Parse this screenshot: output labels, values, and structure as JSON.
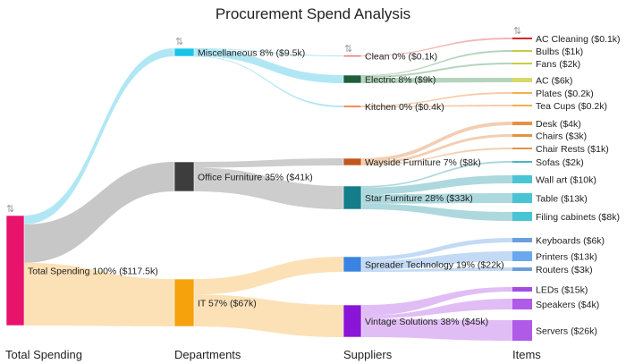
{
  "title": "Procurement Spend Analysis",
  "columns": [
    "Total Spending",
    "Departments",
    "Suppliers",
    "Items"
  ],
  "nodes": [
    {
      "id": "total",
      "col": 0,
      "label": "Total Spending 100% ($117.5k)",
      "value": 117.5,
      "color": "#e8136b",
      "sort_icon": true
    },
    {
      "id": "misc",
      "col": 1,
      "label": "Miscellaneous 8% ($9.5k)",
      "value": 9.5,
      "color": "#18c4e8",
      "sort_icon": true
    },
    {
      "id": "office",
      "col": 1,
      "label": "Office Furniture 35% ($41k)",
      "value": 41,
      "color": "#3d3d3d"
    },
    {
      "id": "it",
      "col": 1,
      "label": "IT 57% ($67k)",
      "value": 67,
      "color": "#f6a20c"
    },
    {
      "id": "clean",
      "col": 2,
      "label": "Clean 0% ($0.1k)",
      "value": 0.1,
      "color": "#d62728",
      "sort_icon": true
    },
    {
      "id": "electric",
      "col": 2,
      "label": "Electric 8% ($9k)",
      "value": 9,
      "color": "#1e5e3a"
    },
    {
      "id": "kitchen",
      "col": 2,
      "label": "Kitchen 0% ($0.4k)",
      "value": 0.4,
      "color": "#e8601c"
    },
    {
      "id": "wayside",
      "col": 2,
      "label": "Wayside Furniture 7% ($8k)",
      "value": 8,
      "color": "#c0571c"
    },
    {
      "id": "star",
      "col": 2,
      "label": "Star Furniture 28% ($33k)",
      "value": 33,
      "color": "#137e8a"
    },
    {
      "id": "spreader",
      "col": 2,
      "label": "Spreader Technology 19% ($22k)",
      "value": 22,
      "color": "#3b83e0"
    },
    {
      "id": "vintage",
      "col": 2,
      "label": "Vintage Solutions 38% ($45k)",
      "value": 45,
      "color": "#8a14d8"
    },
    {
      "id": "accleaning",
      "col": 3,
      "label": "AC Cleaning ($0.1k)",
      "value": 0.1,
      "color": "#d62728",
      "sort_icon": true
    },
    {
      "id": "bulbs",
      "col": 3,
      "label": "Bulbs ($1k)",
      "value": 1,
      "color": "#c8cc42"
    },
    {
      "id": "fans",
      "col": 3,
      "label": "Fans ($2k)",
      "value": 2,
      "color": "#c8cc42"
    },
    {
      "id": "ac",
      "col": 3,
      "label": "AC ($6k)",
      "value": 6,
      "color": "#d8d86a"
    },
    {
      "id": "plates",
      "col": 3,
      "label": "Plates ($0.2k)",
      "value": 0.2,
      "color": "#f2b24a"
    },
    {
      "id": "teacups",
      "col": 3,
      "label": "Tea Cups ($0.2k)",
      "value": 0.2,
      "color": "#f2b24a"
    },
    {
      "id": "desk",
      "col": 3,
      "label": "Desk ($4k)",
      "value": 4,
      "color": "#e39245"
    },
    {
      "id": "chairs",
      "col": 3,
      "label": "Chairs ($3k)",
      "value": 3,
      "color": "#e39245"
    },
    {
      "id": "chairrests",
      "col": 3,
      "label": "Chair Rests ($1k)",
      "value": 1,
      "color": "#e39245"
    },
    {
      "id": "sofas",
      "col": 3,
      "label": "Sofas ($2k)",
      "value": 2,
      "color": "#49b8c4"
    },
    {
      "id": "wallart",
      "col": 3,
      "label": "Wall art ($10k)",
      "value": 10,
      "color": "#49c4d4"
    },
    {
      "id": "table",
      "col": 3,
      "label": "Table ($13k)",
      "value": 13,
      "color": "#49c4d4"
    },
    {
      "id": "filing",
      "col": 3,
      "label": "Filing cabinets ($8k)",
      "value": 8,
      "color": "#49c4d4"
    },
    {
      "id": "keyboards",
      "col": 3,
      "label": "Keyboards ($6k)",
      "value": 6,
      "color": "#6a9fde"
    },
    {
      "id": "printers",
      "col": 3,
      "label": "Printers ($13k)",
      "value": 13,
      "color": "#6aa8ee"
    },
    {
      "id": "routers",
      "col": 3,
      "label": "Routers ($3k)",
      "value": 3,
      "color": "#6a9fde"
    },
    {
      "id": "leds",
      "col": 3,
      "label": "LEDs ($15k)",
      "value": 15,
      "color": "#a34ce0"
    },
    {
      "id": "speakers",
      "col": 3,
      "label": "Speakers  ($4k)",
      "value": 4,
      "color": "#b05ae8"
    },
    {
      "id": "servers",
      "col": 3,
      "label": "Servers ($26k)",
      "value": 26,
      "color": "#b05ae8"
    }
  ],
  "links": [
    {
      "source": "total",
      "target": "misc",
      "value": 9.5,
      "color": "#a3e3f3"
    },
    {
      "source": "total",
      "target": "office",
      "value": 41,
      "color": "#bdbdbd"
    },
    {
      "source": "total",
      "target": "it",
      "value": 67,
      "color": "#fbdcaa"
    },
    {
      "source": "misc",
      "target": "clean",
      "value": 0.1,
      "color": "#a3e3f3"
    },
    {
      "source": "misc",
      "target": "electric",
      "value": 9,
      "color": "#a3e3f3"
    },
    {
      "source": "misc",
      "target": "kitchen",
      "value": 0.4,
      "color": "#a3e3f3"
    },
    {
      "source": "office",
      "target": "wayside",
      "value": 8,
      "color": "#c4c4c4"
    },
    {
      "source": "office",
      "target": "star",
      "value": 33,
      "color": "#c4c4c4"
    },
    {
      "source": "it",
      "target": "spreader",
      "value": 22,
      "color": "#fbdcaa"
    },
    {
      "source": "it",
      "target": "vintage",
      "value": 45,
      "color": "#fbdcaa"
    },
    {
      "source": "clean",
      "target": "accleaning",
      "value": 0.1,
      "color": "#f2a8a8"
    },
    {
      "source": "electric",
      "target": "bulbs",
      "value": 1,
      "color": "#a7cdb0"
    },
    {
      "source": "electric",
      "target": "fans",
      "value": 2,
      "color": "#a7cdb0"
    },
    {
      "source": "electric",
      "target": "ac",
      "value": 6,
      "color": "#a7cdb0"
    },
    {
      "source": "kitchen",
      "target": "plates",
      "value": 0.2,
      "color": "#f6c29a"
    },
    {
      "source": "kitchen",
      "target": "teacups",
      "value": 0.2,
      "color": "#f6c29a"
    },
    {
      "source": "wayside",
      "target": "desk",
      "value": 4,
      "color": "#f0c6a4"
    },
    {
      "source": "wayside",
      "target": "chairs",
      "value": 3,
      "color": "#f0c6a4"
    },
    {
      "source": "wayside",
      "target": "chairrests",
      "value": 1,
      "color": "#f0c6a4"
    },
    {
      "source": "star",
      "target": "sofas",
      "value": 2,
      "color": "#9fd1d7"
    },
    {
      "source": "star",
      "target": "wallart",
      "value": 10,
      "color": "#9fd1d7"
    },
    {
      "source": "star",
      "target": "table",
      "value": 13,
      "color": "#9fd1d7"
    },
    {
      "source": "star",
      "target": "filing",
      "value": 8,
      "color": "#9fd1d7"
    },
    {
      "source": "spreader",
      "target": "keyboards",
      "value": 6,
      "color": "#b8d3f3"
    },
    {
      "source": "spreader",
      "target": "printers",
      "value": 13,
      "color": "#b8d3f3"
    },
    {
      "source": "spreader",
      "target": "routers",
      "value": 3,
      "color": "#b8d3f3"
    },
    {
      "source": "vintage",
      "target": "leds",
      "value": 15,
      "color": "#dcb1f3"
    },
    {
      "source": "vintage",
      "target": "speakers",
      "value": 4,
      "color": "#dcb1f3"
    },
    {
      "source": "vintage",
      "target": "servers",
      "value": 26,
      "color": "#dcb1f3"
    }
  ]
}
